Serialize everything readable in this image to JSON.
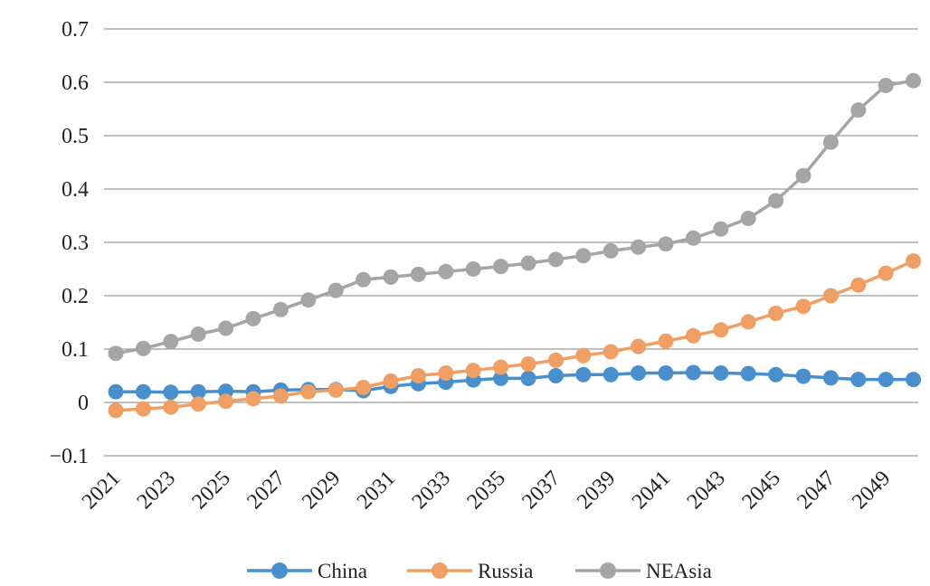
{
  "chart_data": {
    "type": "line",
    "title": "",
    "xlabel": "",
    "ylabel": "",
    "ylim": [
      -0.1,
      0.7
    ],
    "yticks": [
      "0.7",
      "0.6",
      "0.5",
      "0.4",
      "0.3",
      "0.2",
      "0.1",
      "0",
      "−0.1"
    ],
    "ytick_values": [
      0.7,
      0.6,
      0.5,
      0.4,
      0.3,
      0.2,
      0.1,
      0,
      -0.1
    ],
    "xtick_labels": [
      "2021",
      "2023",
      "2025",
      "2027",
      "2029",
      "2031",
      "2033",
      "2035",
      "2037",
      "2039",
      "2041",
      "2043",
      "2045",
      "2047",
      "2049"
    ],
    "x": [
      2021,
      2022,
      2023,
      2024,
      2025,
      2026,
      2027,
      2028,
      2029,
      2030,
      2031,
      2032,
      2033,
      2034,
      2035,
      2036,
      2037,
      2038,
      2039,
      2040,
      2041,
      2042,
      2043,
      2044,
      2045,
      2046,
      2047,
      2048,
      2049,
      2050
    ],
    "grid": true,
    "legend_position": "bottom",
    "series": [
      {
        "name": "China",
        "color": "#4a8fcd",
        "values": [
          0.02,
          0.02,
          0.019,
          0.02,
          0.021,
          0.02,
          0.023,
          0.024,
          0.024,
          0.022,
          0.03,
          0.035,
          0.038,
          0.042,
          0.045,
          0.045,
          0.05,
          0.052,
          0.052,
          0.055,
          0.055,
          0.056,
          0.055,
          0.054,
          0.052,
          0.049,
          0.046,
          0.043,
          0.043,
          0.043
        ]
      },
      {
        "name": "Russia",
        "color": "#ef9f63",
        "values": [
          -0.015,
          -0.012,
          -0.009,
          -0.003,
          0.002,
          0.007,
          0.012,
          0.02,
          0.023,
          0.028,
          0.04,
          0.05,
          0.055,
          0.06,
          0.066,
          0.072,
          0.079,
          0.088,
          0.095,
          0.105,
          0.115,
          0.125,
          0.136,
          0.151,
          0.167,
          0.18,
          0.2,
          0.22,
          0.242,
          0.265
        ]
      },
      {
        "name": "NEAsia",
        "color": "#a5a5a5",
        "values": [
          0.092,
          0.101,
          0.114,
          0.128,
          0.139,
          0.157,
          0.174,
          0.192,
          0.21,
          0.23,
          0.235,
          0.24,
          0.245,
          0.25,
          0.255,
          0.261,
          0.268,
          0.275,
          0.284,
          0.291,
          0.297,
          0.308,
          0.325,
          0.345,
          0.378,
          0.425,
          0.488,
          0.548,
          0.594,
          0.603
        ]
      }
    ]
  }
}
